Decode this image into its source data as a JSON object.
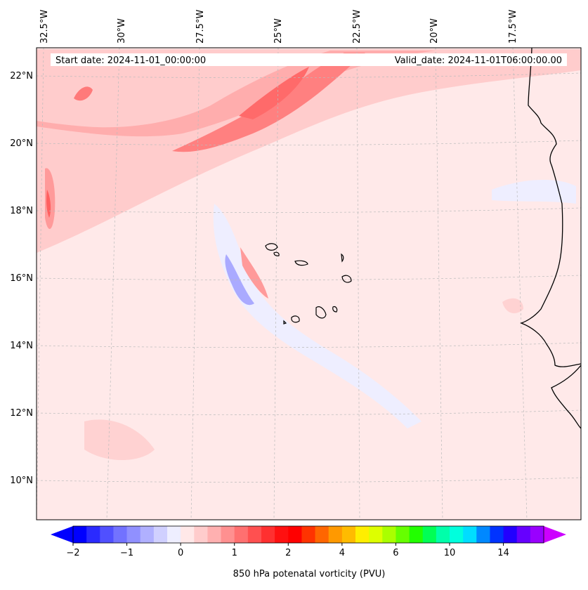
{
  "map": {
    "start_label": "Start date: 2024-11-01_00:00:00",
    "valid_label": "Valid_date: 2024-11-01T06:00:00.00",
    "lon_ticks": [
      "32.5°W",
      "30°W",
      "27.5°W",
      "25°W",
      "22.5°W",
      "20°W",
      "17.5°W"
    ],
    "lat_ticks": [
      "22°N",
      "20°N",
      "18°N",
      "16°N",
      "14°N",
      "12°N",
      "10°N"
    ],
    "field": "850 hPa potential vorticity",
    "colors": {
      "background_field": "#ffe9e9",
      "land_outline": "#000000",
      "gridline": "#bbbbbb"
    }
  },
  "colorbar": {
    "label": "850 hPa potenatal vorticity (PVU)",
    "tick_labels": [
      "−2",
      "−1",
      "0",
      "1",
      "2",
      "4",
      "6",
      "10",
      "14"
    ],
    "colors": [
      "#0000ff",
      "#2a2aff",
      "#5050ff",
      "#7272ff",
      "#9090ff",
      "#b0b0ff",
      "#d0d0ff",
      "#eeeeff",
      "#ffe8e8",
      "#ffcccc",
      "#ffb0b0",
      "#ff9090",
      "#ff7070",
      "#ff5050",
      "#ff3030",
      "#ff1010",
      "#ff0000",
      "#ff3300",
      "#ff6600",
      "#ff9900",
      "#ffbb00",
      "#ffee00",
      "#ddff00",
      "#aaff00",
      "#66ff00",
      "#22ff00",
      "#00ff55",
      "#00ffaa",
      "#00ffdd",
      "#00ddff",
      "#0088ff",
      "#0033ff",
      "#2200ff",
      "#6600ff",
      "#9900ff"
    ],
    "extend_low": "#0000ff",
    "extend_high": "#cc00ff"
  }
}
